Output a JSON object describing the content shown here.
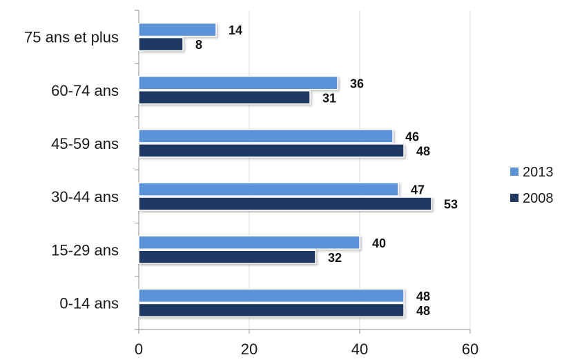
{
  "chart_data": {
    "type": "bar",
    "orientation": "horizontal",
    "categories": [
      "0-14 ans",
      "15-29 ans",
      "30-44 ans",
      "45-59 ans",
      "60-74 ans",
      "75 ans et plus"
    ],
    "series": [
      {
        "name": "2013",
        "values": [
          48,
          40,
          47,
          46,
          36,
          14
        ],
        "color": "#5b92d8"
      },
      {
        "name": "2008",
        "values": [
          48,
          32,
          53,
          48,
          31,
          8
        ],
        "color": "#1f3864"
      }
    ],
    "xlim": [
      0,
      60
    ],
    "xticks": [
      "0",
      "20",
      "40",
      "60"
    ],
    "grid": true,
    "legend_position": "right"
  }
}
